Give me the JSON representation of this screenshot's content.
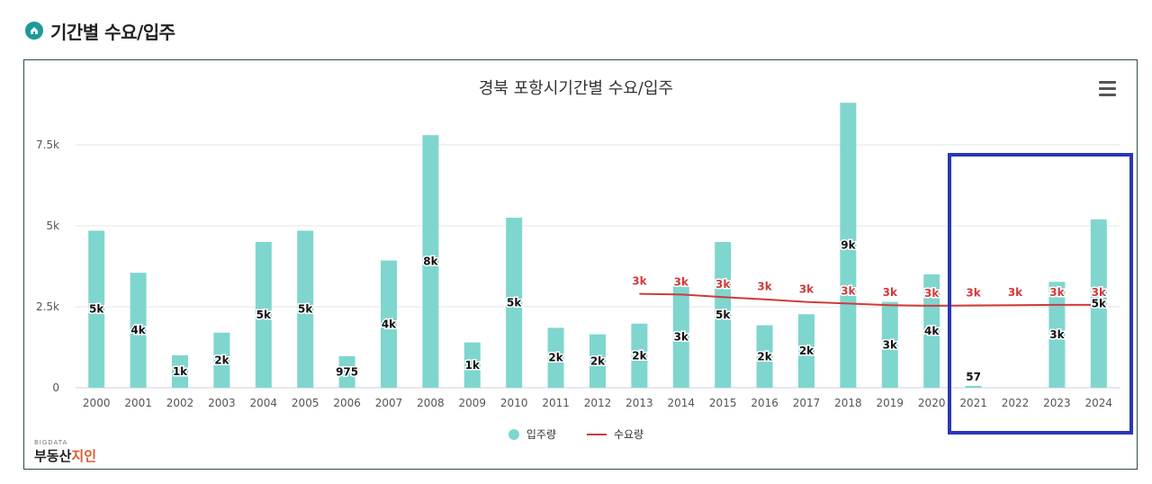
{
  "header": {
    "title": "기간별 수요/입주"
  },
  "chart_data": {
    "type": "bar",
    "title": "경북 포항시기간별 수요/입주",
    "categories": [
      "2000",
      "2001",
      "2002",
      "2003",
      "2004",
      "2005",
      "2006",
      "2007",
      "2008",
      "2009",
      "2010",
      "2011",
      "2012",
      "2013",
      "2014",
      "2015",
      "2016",
      "2017",
      "2018",
      "2019",
      "2020",
      "2021",
      "2022",
      "2023",
      "2024"
    ],
    "series": [
      {
        "name": "입주량",
        "type": "bar",
        "color": "#7fd6cf",
        "values": [
          4850,
          3550,
          1000,
          1700,
          4500,
          4850,
          975,
          3930,
          7800,
          1400,
          5250,
          1850,
          1650,
          1980,
          3130,
          4500,
          1930,
          2270,
          8800,
          2650,
          3500,
          57,
          0,
          3270,
          5200
        ],
        "labels": [
          "5k",
          "4k",
          "1k",
          "2k",
          "5k",
          "5k",
          "975",
          "4k",
          "8k",
          "1k",
          "5k",
          "2k",
          "2k",
          "2k",
          "3k",
          "5k",
          "2k",
          "2k",
          "9k",
          "3k",
          "4k",
          "57",
          "",
          "3k",
          "5k"
        ]
      },
      {
        "name": "수요량",
        "type": "line",
        "color": "#d03a3a",
        "values": [
          null,
          null,
          null,
          null,
          null,
          null,
          null,
          null,
          null,
          null,
          null,
          null,
          null,
          2900,
          2880,
          2800,
          2730,
          2650,
          2600,
          2550,
          2530,
          2540,
          2550,
          2560,
          2560
        ],
        "labels": [
          "",
          "",
          "",
          "",
          "",
          "",
          "",
          "",
          "",
          "",
          "",
          "",
          "",
          "3k",
          "3k",
          "3k",
          "3k",
          "3k",
          "3k",
          "3k",
          "3k",
          "3k",
          "3k",
          "3k",
          "3k"
        ]
      }
    ],
    "yticks": [
      "0",
      "2.5k",
      "5k",
      "7.5k"
    ],
    "ytick_values": [
      0,
      2500,
      5000,
      7500
    ],
    "ylim": [
      0,
      9000
    ],
    "legend": "bottom-center",
    "grid": true
  },
  "legend": {
    "bar_label": "입주량",
    "line_label": "수요량"
  },
  "brand": {
    "top": "BIGDATA",
    "main_a": "부동산",
    "main_b": "지인"
  }
}
